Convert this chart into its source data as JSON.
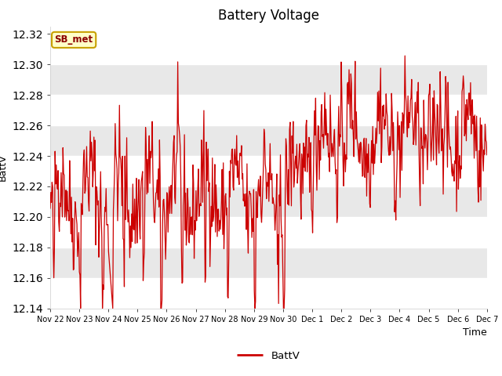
{
  "title": "Battery Voltage",
  "xlabel": "Time",
  "ylabel": "BattV",
  "ylim": [
    12.14,
    12.325
  ],
  "yticks": [
    12.14,
    12.16,
    12.18,
    12.2,
    12.22,
    12.24,
    12.26,
    12.28,
    12.3,
    12.32
  ],
  "legend_label": "BattV",
  "sb_met_label": "SB_met",
  "line_color": "#cc0000",
  "line_width": 0.9,
  "bg_color": "#ffffff",
  "plot_bg_color": "#ffffff",
  "x_tick_labels": [
    "Nov 22",
    "Nov 23",
    "Nov 24",
    "Nov 25",
    "Nov 26",
    "Nov 27",
    "Nov 28",
    "Nov 29",
    "Nov 30",
    "Dec 1",
    "Dec 2",
    "Dec 3",
    "Dec 4",
    "Dec 5",
    "Dec 6",
    "Dec 7"
  ],
  "band_colors": [
    "#ffffff",
    "#e8e8e8"
  ],
  "title_fontsize": 12
}
